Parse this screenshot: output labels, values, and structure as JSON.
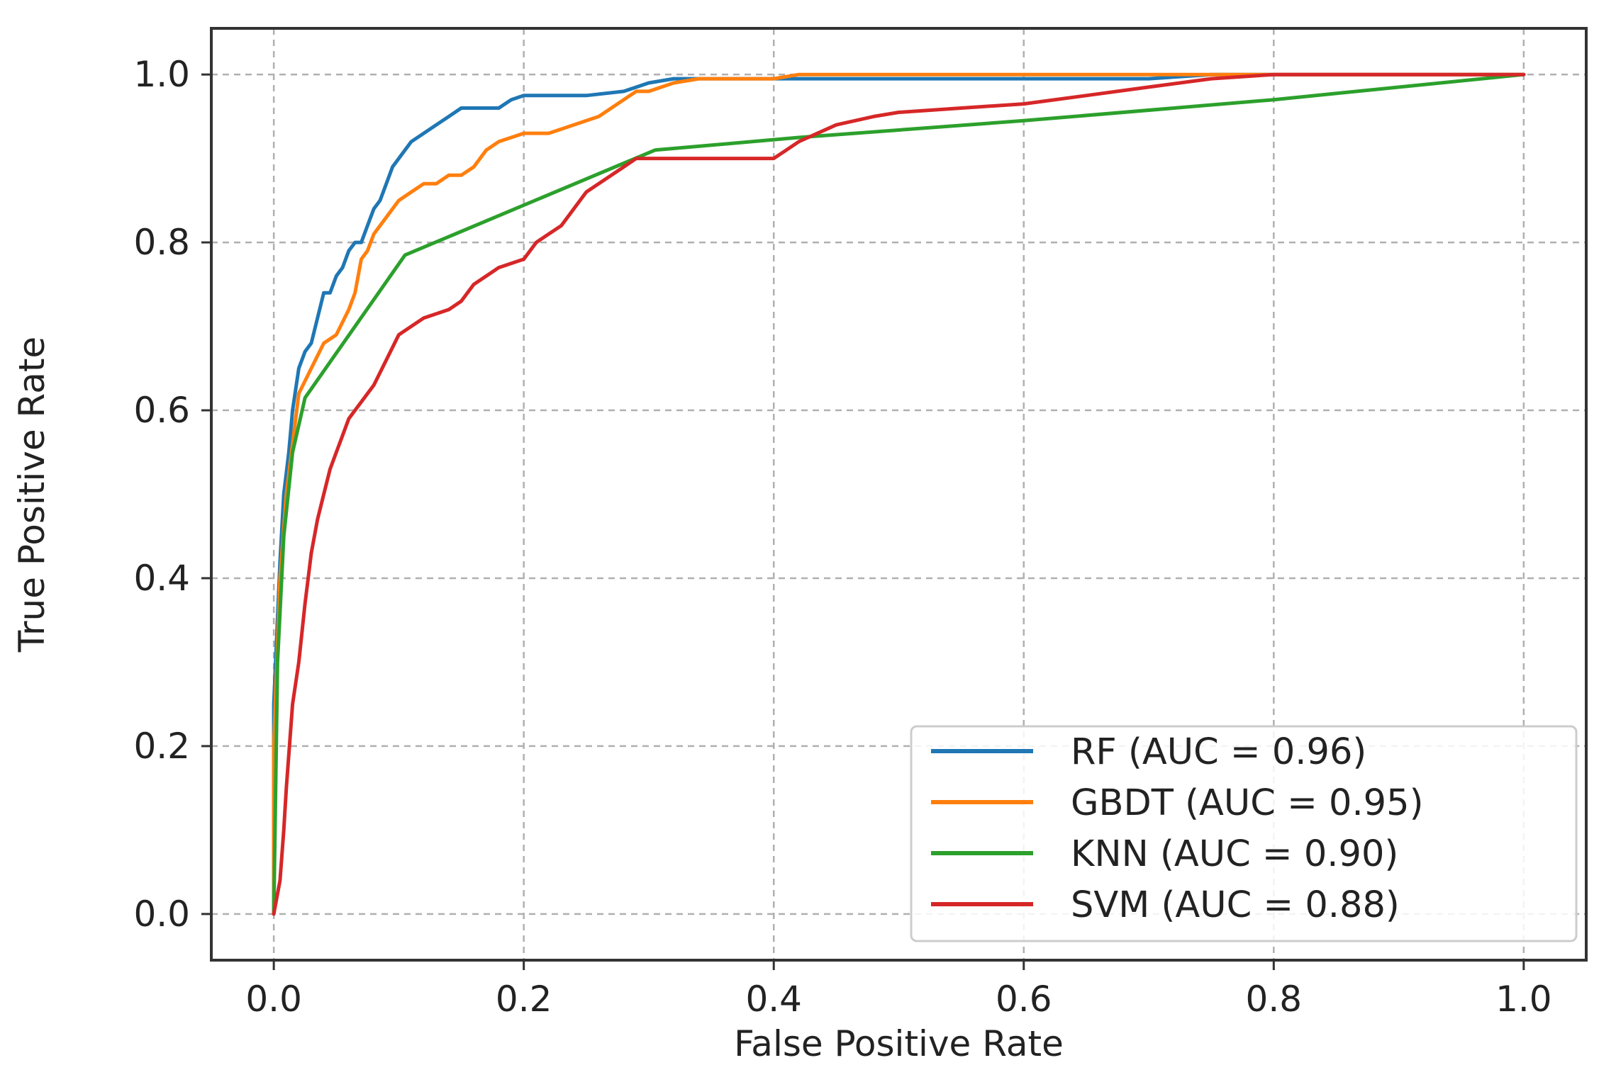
{
  "chart_data": {
    "type": "line",
    "title": "",
    "xlabel": "False Positive Rate",
    "ylabel": "True Positive Rate",
    "xlim": [
      -0.05,
      1.05
    ],
    "ylim": [
      -0.055,
      1.055
    ],
    "xticks": [
      0.0,
      0.2,
      0.4,
      0.6,
      0.8,
      1.0
    ],
    "yticks": [
      0.0,
      0.2,
      0.4,
      0.6,
      0.8,
      1.0
    ],
    "xtick_labels": [
      "0.0",
      "0.2",
      "0.4",
      "0.6",
      "0.8",
      "1.0"
    ],
    "ytick_labels": [
      "0.0",
      "0.2",
      "0.4",
      "0.6",
      "0.8",
      "1.0"
    ],
    "grid": true,
    "legend_position": "bottom-right",
    "series": [
      {
        "name": "RF (AUC = 0.96)",
        "color": "#1f77b4",
        "x": [
          0.0,
          0.0,
          0.005,
          0.008,
          0.012,
          0.015,
          0.02,
          0.025,
          0.03,
          0.035,
          0.04,
          0.045,
          0.05,
          0.055,
          0.06,
          0.065,
          0.07,
          0.075,
          0.08,
          0.085,
          0.09,
          0.095,
          0.1,
          0.11,
          0.12,
          0.13,
          0.14,
          0.15,
          0.16,
          0.17,
          0.18,
          0.19,
          0.2,
          0.22,
          0.25,
          0.28,
          0.3,
          0.32,
          0.35,
          0.4,
          0.5,
          0.6,
          0.7,
          0.75,
          0.8,
          0.9,
          1.0
        ],
        "y": [
          0.0,
          0.25,
          0.42,
          0.5,
          0.55,
          0.6,
          0.65,
          0.67,
          0.68,
          0.71,
          0.74,
          0.74,
          0.76,
          0.77,
          0.79,
          0.8,
          0.8,
          0.82,
          0.84,
          0.85,
          0.87,
          0.89,
          0.9,
          0.92,
          0.93,
          0.94,
          0.95,
          0.96,
          0.96,
          0.96,
          0.96,
          0.97,
          0.975,
          0.975,
          0.975,
          0.98,
          0.99,
          0.995,
          0.995,
          0.995,
          0.995,
          0.995,
          0.995,
          1.0,
          1.0,
          1.0,
          1.0
        ]
      },
      {
        "name": "GBDT (AUC = 0.95)",
        "color": "#ff7f0e",
        "x": [
          0.0,
          0.0,
          0.005,
          0.01,
          0.015,
          0.02,
          0.03,
          0.04,
          0.05,
          0.06,
          0.065,
          0.07,
          0.075,
          0.08,
          0.09,
          0.1,
          0.11,
          0.12,
          0.13,
          0.14,
          0.15,
          0.16,
          0.17,
          0.18,
          0.2,
          0.22,
          0.24,
          0.26,
          0.28,
          0.29,
          0.3,
          0.32,
          0.34,
          0.4,
          0.42,
          0.5,
          0.6,
          0.7,
          0.8,
          0.9,
          1.0
        ],
        "y": [
          0.0,
          0.2,
          0.4,
          0.5,
          0.56,
          0.62,
          0.65,
          0.68,
          0.69,
          0.72,
          0.74,
          0.78,
          0.79,
          0.81,
          0.83,
          0.85,
          0.86,
          0.87,
          0.87,
          0.88,
          0.88,
          0.89,
          0.91,
          0.92,
          0.93,
          0.93,
          0.94,
          0.95,
          0.97,
          0.98,
          0.98,
          0.99,
          0.995,
          0.995,
          1.0,
          1.0,
          1.0,
          1.0,
          1.0,
          1.0,
          1.0
        ]
      },
      {
        "name": "KNN (AUC = 0.90)",
        "color": "#2ca02c",
        "x": [
          0.0,
          0.003,
          0.008,
          0.015,
          0.025,
          0.105,
          0.305,
          0.42,
          0.6,
          0.8,
          1.0
        ],
        "y": [
          0.0,
          0.3,
          0.45,
          0.55,
          0.615,
          0.785,
          0.91,
          0.925,
          0.945,
          0.97,
          1.0
        ]
      },
      {
        "name": "SVM (AUC = 0.88)",
        "color": "#d62728",
        "x": [
          0.0,
          0.005,
          0.008,
          0.01,
          0.015,
          0.02,
          0.025,
          0.03,
          0.035,
          0.04,
          0.045,
          0.05,
          0.055,
          0.06,
          0.065,
          0.07,
          0.08,
          0.09,
          0.1,
          0.11,
          0.12,
          0.14,
          0.15,
          0.16,
          0.17,
          0.18,
          0.2,
          0.21,
          0.22,
          0.23,
          0.24,
          0.25,
          0.26,
          0.27,
          0.28,
          0.29,
          0.3,
          0.35,
          0.4,
          0.41,
          0.42,
          0.45,
          0.48,
          0.5,
          0.55,
          0.6,
          0.65,
          0.7,
          0.75,
          0.8,
          0.9,
          1.0
        ],
        "y": [
          0.0,
          0.04,
          0.1,
          0.15,
          0.25,
          0.3,
          0.37,
          0.43,
          0.47,
          0.5,
          0.53,
          0.55,
          0.57,
          0.59,
          0.6,
          0.61,
          0.63,
          0.66,
          0.69,
          0.7,
          0.71,
          0.72,
          0.73,
          0.75,
          0.76,
          0.77,
          0.78,
          0.8,
          0.81,
          0.82,
          0.84,
          0.86,
          0.87,
          0.88,
          0.89,
          0.9,
          0.9,
          0.9,
          0.9,
          0.91,
          0.92,
          0.94,
          0.95,
          0.955,
          0.96,
          0.965,
          0.975,
          0.985,
          0.995,
          1.0,
          1.0,
          1.0
        ]
      }
    ]
  }
}
